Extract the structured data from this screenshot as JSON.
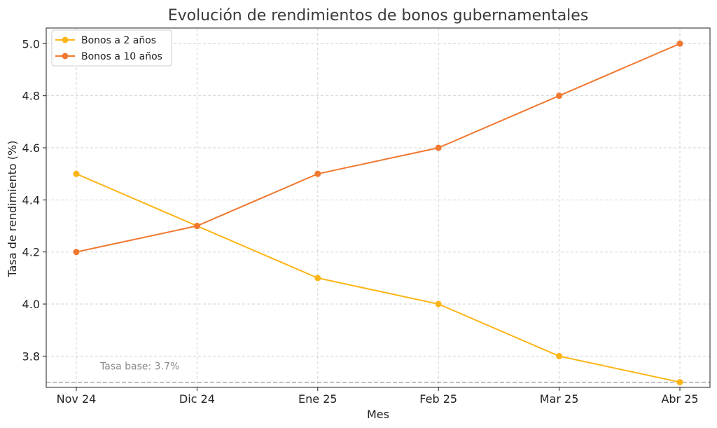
{
  "chart_data": {
    "type": "line",
    "title": "Evolución de rendimientos de bonos gubernamentales",
    "xlabel": "Mes",
    "ylabel": "Tasa de rendimiento (%)",
    "categories": [
      "Nov 24",
      "Dic 24",
      "Ene 25",
      "Feb 25",
      "Mar 25",
      "Abr 25"
    ],
    "series": [
      {
        "name": "Bonos a 2 años",
        "color": "#FDB515",
        "values": [
          4.5,
          4.3,
          4.1,
          4.0,
          3.8,
          3.7
        ]
      },
      {
        "name": "Bonos a 10 años",
        "color": "#F07830",
        "values": [
          4.2,
          4.3,
          4.5,
          4.6,
          4.8,
          5.0
        ]
      }
    ],
    "ylim": [
      3.68,
      5.06
    ],
    "yticks": [
      "3.8",
      "4.0",
      "4.2",
      "4.4",
      "4.6",
      "4.8",
      "5.0"
    ],
    "grid": true,
    "legend_position": "top-left",
    "reference_line": {
      "value": 3.7,
      "label": "Tasa base: 3.7%",
      "color": "#888888"
    }
  }
}
